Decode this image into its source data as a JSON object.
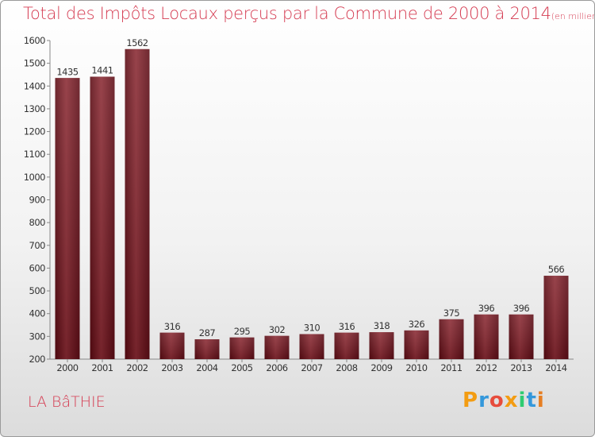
{
  "chart_data": {
    "type": "bar",
    "title": "Total des Impôts Locaux perçus par la Commune de 2000 à 2014",
    "subtitle": "(en milliers d'€)",
    "categories": [
      "2000",
      "2001",
      "2002",
      "2003",
      "2004",
      "2005",
      "2006",
      "2007",
      "2008",
      "2009",
      "2010",
      "2011",
      "2012",
      "2013",
      "2014"
    ],
    "values": [
      1435,
      1441,
      1562,
      316,
      287,
      295,
      302,
      310,
      316,
      318,
      326,
      375,
      396,
      396,
      566
    ],
    "ylim": [
      200,
      1600
    ],
    "yticks": [
      200,
      300,
      400,
      500,
      600,
      700,
      800,
      900,
      1000,
      1100,
      1200,
      1300,
      1400,
      1500,
      1600
    ],
    "grid": false,
    "bar_color": "#7a1620"
  },
  "commune": "LA BâTHIE",
  "logo": {
    "letters": [
      "P",
      "r",
      "o",
      "x",
      "i",
      "t",
      "i"
    ],
    "colors": [
      "#f39c12",
      "#3498db",
      "#e74c3c",
      "#f39c12",
      "#2ecc71",
      "#3498db",
      "#e67e22"
    ]
  }
}
